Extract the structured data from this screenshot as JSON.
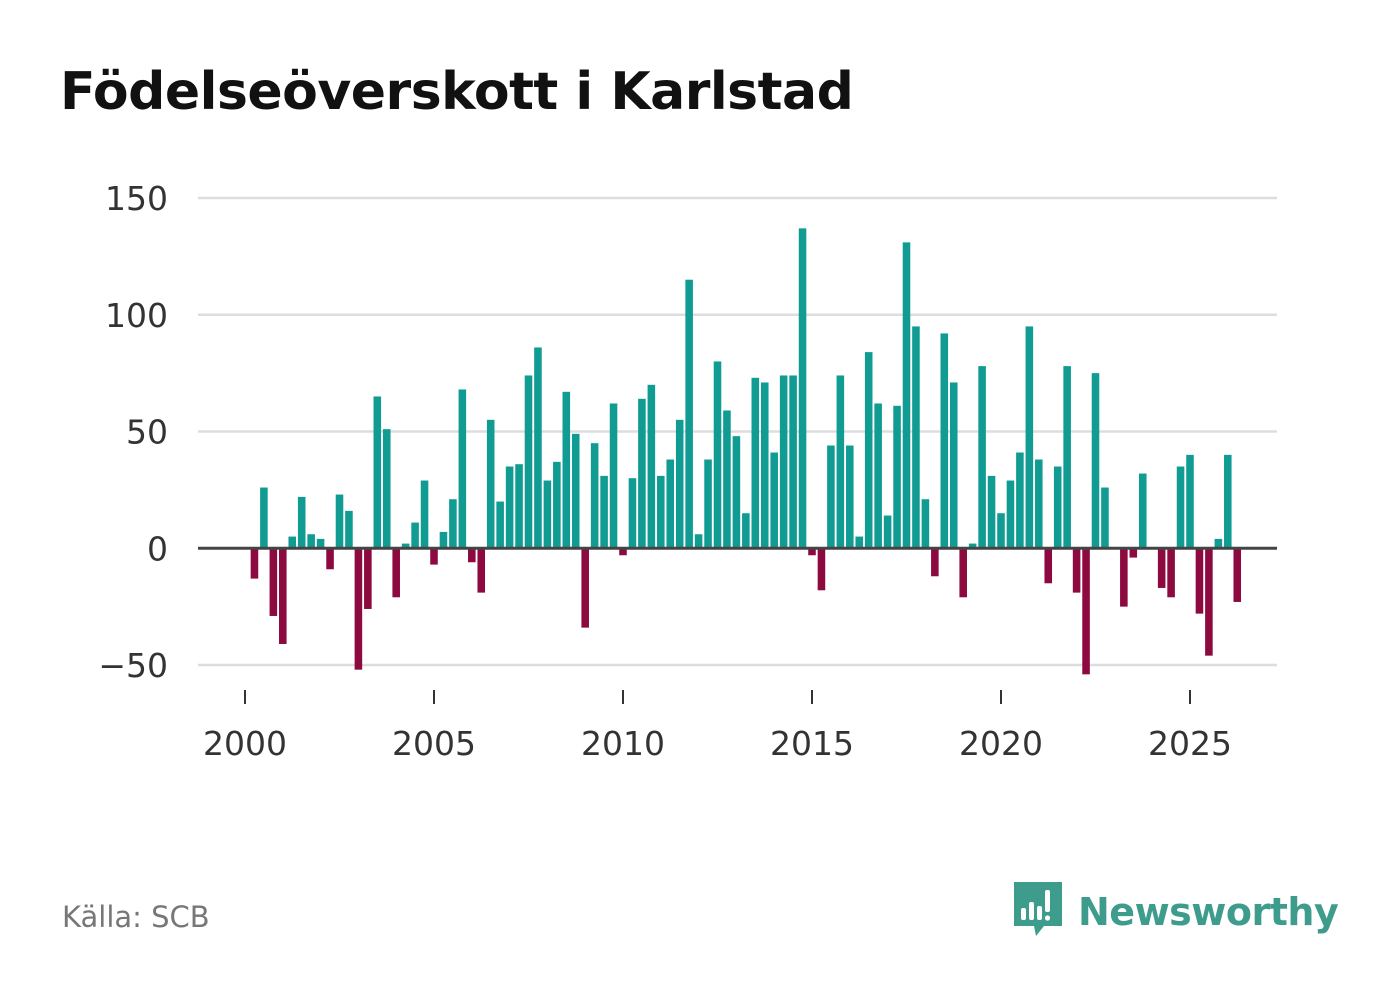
{
  "title": "Födelseöverskott i Karlstad",
  "source": "Källa: SCB",
  "brand": {
    "name": "Newsworthy",
    "icon": "newsworthy-logo-icon",
    "color": "#3e9c8d"
  },
  "colors": {
    "positive": "#109c92",
    "negative": "#8c0a3f",
    "grid": "#dddddd",
    "zero": "#444444"
  },
  "chart_data": {
    "type": "bar",
    "title": "Födelseöverskott i Karlstad",
    "xlabel": "",
    "ylabel": "",
    "ylim": [
      -60,
      150
    ],
    "xlim": [
      1999.0,
      2027.3
    ],
    "yticks": [
      150,
      100,
      50,
      0,
      -50
    ],
    "ytick_labels": [
      "150",
      "100",
      "50",
      "0",
      "−50"
    ],
    "xticks": [
      2000,
      2005,
      2010,
      2015,
      2020,
      2025
    ],
    "xtick_labels": [
      "2000",
      "2005",
      "2010",
      "2015",
      "2020",
      "2025"
    ],
    "grid": true,
    "frequency": "quarterly",
    "start": 2000.0,
    "step": 0.25,
    "values": [
      -13,
      26,
      -29,
      -41,
      5,
      22,
      6,
      4,
      -9,
      23,
      16,
      -52,
      -26,
      65,
      51,
      -21,
      2,
      11,
      29,
      -7,
      7,
      21,
      68,
      -6,
      -19,
      55,
      20,
      35,
      36,
      74,
      86,
      29,
      37,
      67,
      49,
      -34,
      45,
      31,
      62,
      -3,
      30,
      64,
      70,
      31,
      38,
      55,
      115,
      6,
      38,
      80,
      59,
      48,
      15,
      73,
      71,
      41,
      74,
      74,
      137,
      -3,
      -18,
      44,
      74,
      44,
      5,
      84,
      62,
      14,
      61,
      131,
      95,
      21,
      -12,
      92,
      71,
      -21,
      2,
      78,
      31,
      15,
      29,
      41,
      95,
      38,
      -15,
      35,
      78,
      -19,
      -54,
      75,
      26,
      0,
      -25,
      -4,
      32,
      0,
      -17,
      -21,
      35,
      40,
      -28,
      -46,
      4,
      40,
      -23
    ]
  }
}
